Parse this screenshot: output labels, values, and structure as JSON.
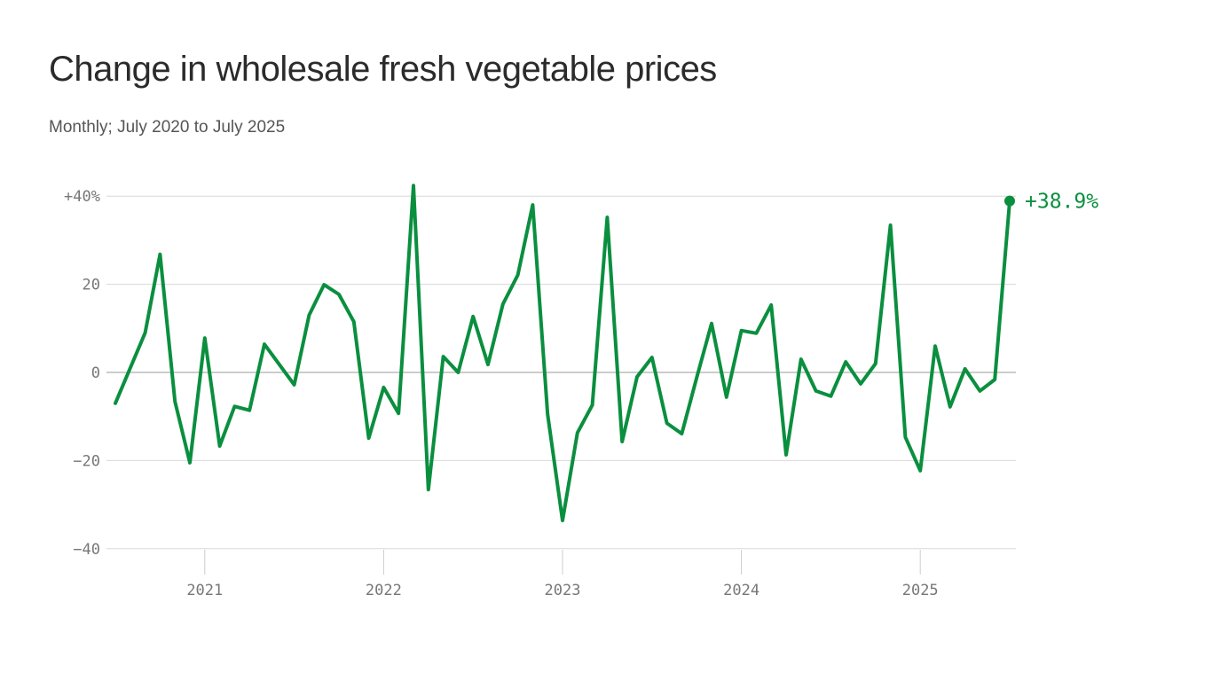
{
  "chart_data": {
    "type": "line",
    "title": "Change in wholesale fresh vegetable prices",
    "subtitle": "Monthly; July 2020 to July 2025",
    "start": "2020-07",
    "frequency": "monthly",
    "values": [
      -7,
      1,
      9,
      26.8,
      -6.6,
      -20.5,
      7.8,
      -16.7,
      -7.7,
      -8.6,
      6.4,
      1.8,
      -2.8,
      13,
      19.9,
      17.7,
      11.5,
      -14.9,
      -3.4,
      -9.3,
      42.4,
      -26.6,
      3.6,
      0,
      12.7,
      1.8,
      15.5,
      22.1,
      38,
      -9.5,
      -33.6,
      -13.7,
      -7.4,
      35.2,
      -15.7,
      -1,
      3.4,
      -11.5,
      -13.9,
      -1.2,
      11.1,
      -5.6,
      9.5,
      8.9,
      15.3,
      -18.7,
      3,
      -4.2,
      -5.4,
      2.4,
      -2.6,
      2,
      33.4,
      -14.7,
      -22.3,
      6,
      -7.8,
      0.8,
      -4.2,
      -1.6,
      38.9
    ],
    "ylim": [
      -40,
      40
    ],
    "yticks": [
      {
        "v": 40,
        "label": "+40%"
      },
      {
        "v": 20,
        "label": "20"
      },
      {
        "v": 0,
        "label": "0"
      },
      {
        "v": -20,
        "label": "−20"
      },
      {
        "v": -40,
        "label": "−40"
      }
    ],
    "xticks": [
      {
        "year": 2021,
        "label": "2021"
      },
      {
        "year": 2022,
        "label": "2022"
      },
      {
        "year": 2023,
        "label": "2023"
      },
      {
        "year": 2024,
        "label": "2024"
      },
      {
        "year": 2025,
        "label": "2025"
      }
    ],
    "end_label": "+38.9%",
    "grid": true,
    "color": "#0a8f3f"
  }
}
